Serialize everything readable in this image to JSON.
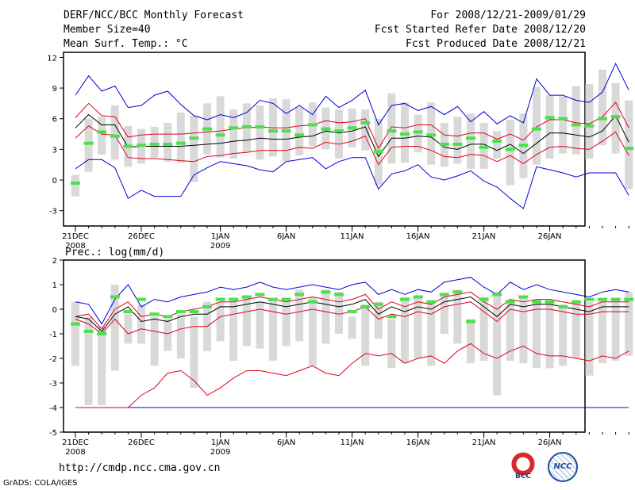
{
  "header": {
    "title": "DERF/NCC/BCC Monthly Forecast",
    "member_size": "Member Size=40",
    "variable": "Mean Surf. Temp.: °C",
    "period": "For 2008/12/21-2009/01/29",
    "start_date": "Fcst Started Refer Date 2008/12/20",
    "produced_date": "Fcst Produced Date 2008/12/21"
  },
  "footer": {
    "url": "http://cmdp.ncc.cma.gov.cn",
    "grads": "GrADS: COLA/IGES",
    "logo_left": "BCC",
    "logo_right": "NCC"
  },
  "colors": {
    "box": "#d9d9d9",
    "median": "#4ce04c",
    "mean": "#000000",
    "spread": "#e0001c",
    "extreme": "#0000d8"
  },
  "chart_data": [
    {
      "type": "line",
      "title": "Mean Surf. Temp.: °C",
      "x_start_day": 0,
      "ylim": [
        -4.5,
        12.5
      ],
      "yticks": [
        -3,
        0,
        3,
        6,
        9,
        12
      ],
      "xticks": [
        {
          "day": 0,
          "label": "21DEC",
          "sub": "2008"
        },
        {
          "day": 5,
          "label": "26DEC",
          "sub": ""
        },
        {
          "day": 11,
          "label": "1JAN",
          "sub": "2009"
        },
        {
          "day": 16,
          "label": "6JAN",
          "sub": ""
        },
        {
          "day": 21,
          "label": "11JAN",
          "sub": ""
        },
        {
          "day": 26,
          "label": "16JAN",
          "sub": ""
        },
        {
          "day": 31,
          "label": "21JAN",
          "sub": ""
        },
        {
          "day": 36,
          "label": "26JAN",
          "sub": ""
        }
      ],
      "series": [
        {
          "name": "max",
          "values": [
            8.3,
            10.2,
            8.7,
            9.2,
            7.1,
            7.3,
            8.3,
            8.7,
            7.4,
            6.3,
            5.9,
            6.4,
            6.1,
            6.6,
            7.8,
            7.5,
            6.5,
            7.3,
            6.4,
            8.2,
            7.1,
            7.8,
            8.8,
            5.4,
            7.3,
            7.5,
            6.8,
            7.2,
            6.4,
            7.2,
            5.7,
            6.7,
            5.5,
            6.3,
            5.6,
            9.9,
            8.3,
            8.3,
            7.8,
            7.6,
            8.6,
            11.4,
            8.8
          ]
        },
        {
          "name": "spread_upper",
          "values": [
            6.1,
            7.5,
            6.3,
            6.2,
            4.2,
            4.4,
            4.5,
            4.5,
            4.5,
            4.6,
            4.7,
            4.8,
            5.0,
            5.1,
            5.2,
            5.1,
            5.1,
            5.3,
            5.4,
            5.8,
            5.6,
            5.7,
            6.0,
            3.1,
            5.2,
            5.1,
            5.4,
            5.4,
            4.4,
            4.3,
            4.6,
            4.6,
            4.0,
            4.5,
            3.9,
            5.2,
            5.9,
            5.9,
            5.6,
            5.5,
            6.2,
            7.6,
            5.1
          ]
        },
        {
          "name": "mean",
          "values": [
            5.1,
            6.4,
            5.4,
            5.4,
            3.2,
            3.3,
            3.3,
            3.3,
            3.3,
            3.4,
            3.5,
            3.6,
            3.8,
            3.9,
            4.1,
            4.0,
            4.0,
            4.2,
            4.3,
            4.8,
            4.6,
            4.8,
            5.2,
            2.3,
            4.1,
            4.1,
            4.3,
            4.2,
            3.2,
            3.0,
            3.5,
            3.5,
            2.9,
            3.5,
            2.6,
            3.6,
            4.6,
            4.6,
            4.4,
            4.2,
            4.8,
            6.3,
            3.7
          ]
        },
        {
          "name": "spread_lower",
          "values": [
            4.1,
            5.3,
            4.5,
            4.4,
            2.2,
            2.1,
            2.1,
            2.0,
            1.9,
            1.8,
            2.3,
            2.4,
            2.6,
            2.7,
            2.9,
            2.9,
            2.9,
            3.2,
            3.1,
            3.7,
            3.5,
            3.8,
            4.3,
            1.5,
            3.2,
            3.3,
            3.3,
            2.9,
            2.3,
            2.2,
            2.5,
            2.4,
            1.8,
            2.4,
            1.6,
            2.5,
            3.2,
            3.3,
            3.1,
            3.0,
            3.8,
            4.7,
            2.4
          ]
        },
        {
          "name": "min",
          "values": [
            1.1,
            2.0,
            2.0,
            1.2,
            -1.8,
            -1.0,
            -1.6,
            -1.6,
            -1.6,
            0.5,
            1.2,
            1.8,
            1.6,
            1.4,
            1.0,
            0.8,
            1.8,
            2.0,
            2.2,
            1.1,
            1.8,
            2.2,
            2.2,
            -0.9,
            0.6,
            0.9,
            1.5,
            0.3,
            0.0,
            0.4,
            0.9,
            -0.1,
            -0.7,
            -1.8,
            -2.8,
            1.3,
            1.0,
            0.7,
            0.3,
            0.7,
            0.7,
            0.7,
            -1.5
          ]
        },
        {
          "name": "median",
          "values": [
            -0.3,
            3.6,
            4.7,
            4.3,
            3.3,
            3.4,
            3.5,
            3.5,
            3.6,
            4.1,
            5.0,
            4.4,
            5.1,
            5.2,
            5.2,
            4.8,
            4.8,
            4.4,
            5.4,
            5.0,
            4.8,
            5.1,
            5.6,
            2.8,
            4.8,
            4.5,
            4.7,
            4.4,
            3.5,
            3.5,
            4.1,
            3.2,
            3.8,
            3.0,
            3.4,
            5.0,
            6.1,
            6.0,
            5.4,
            5.3,
            6.0,
            6.2,
            3.1
          ]
        },
        {
          "name": "box_upper",
          "values": [
            0.5,
            6.0,
            6.2,
            7.3,
            5.3,
            5.0,
            5.2,
            5.6,
            6.6,
            6.3,
            7.5,
            8.2,
            6.9,
            7.5,
            7.3,
            8.0,
            7.9,
            7.1,
            7.6,
            7.1,
            6.9,
            7.0,
            6.9,
            6.0,
            8.5,
            7.6,
            6.4,
            7.6,
            5.6,
            6.2,
            6.5,
            5.6,
            4.8,
            5.9,
            6.5,
            9.1,
            8.3,
            8.2,
            9.2,
            9.4,
            10.8,
            9.5,
            7.8
          ]
        },
        {
          "name": "box_lower",
          "values": [
            -1.6,
            0.8,
            2.5,
            2.0,
            1.3,
            1.6,
            2.2,
            1.8,
            1.7,
            -0.2,
            2.5,
            2.2,
            2.1,
            2.7,
            2.0,
            2.3,
            1.8,
            2.4,
            3.3,
            3.0,
            2.1,
            3.2,
            2.9,
            -0.5,
            1.6,
            1.7,
            2.7,
            1.5,
            1.3,
            1.6,
            1.1,
            1.1,
            2.1,
            -0.5,
            0.2,
            1.5,
            2.1,
            2.6,
            2.5,
            2.1,
            3.4,
            2.6,
            -0.9
          ]
        }
      ]
    },
    {
      "type": "line",
      "title": "Prec.: log(mm/d)",
      "x_start_day": 0,
      "ylim": [
        -5,
        2
      ],
      "yticks": [
        -5,
        -4,
        -3,
        -2,
        -1,
        0,
        1,
        2
      ],
      "xticks": [
        {
          "day": 0,
          "label": "21DEC",
          "sub": "2008"
        },
        {
          "day": 5,
          "label": "26DEC",
          "sub": ""
        },
        {
          "day": 11,
          "label": "1JAN",
          "sub": "2009"
        },
        {
          "day": 16,
          "label": "6JAN",
          "sub": ""
        },
        {
          "day": 21,
          "label": "11JAN",
          "sub": ""
        },
        {
          "day": 26,
          "label": "16JAN",
          "sub": ""
        },
        {
          "day": 31,
          "label": "21JAN",
          "sub": ""
        },
        {
          "day": 36,
          "label": "26JAN",
          "sub": ""
        }
      ],
      "series": [
        {
          "name": "max",
          "values": [
            0.3,
            0.2,
            -0.6,
            0.4,
            1.0,
            0.1,
            0.4,
            0.3,
            0.5,
            0.6,
            0.7,
            0.9,
            0.8,
            0.9,
            1.1,
            0.9,
            0.8,
            0.9,
            1.0,
            0.9,
            0.8,
            1.0,
            1.1,
            0.6,
            0.8,
            0.6,
            0.8,
            0.7,
            1.1,
            1.2,
            1.3,
            0.9,
            0.6,
            1.1,
            0.8,
            1.0,
            0.8,
            0.7,
            0.6,
            0.5,
            0.7,
            0.8,
            0.7
          ]
        },
        {
          "name": "spread_upper",
          "values": [
            -0.3,
            -0.2,
            -0.8,
            0.0,
            0.3,
            -0.3,
            -0.2,
            -0.3,
            -0.1,
            0.0,
            0.1,
            0.3,
            0.3,
            0.4,
            0.5,
            0.4,
            0.3,
            0.4,
            0.5,
            0.4,
            0.3,
            0.4,
            0.6,
            0.0,
            0.3,
            0.1,
            0.3,
            0.2,
            0.5,
            0.6,
            0.7,
            0.3,
            0.0,
            0.4,
            0.3,
            0.4,
            0.4,
            0.3,
            0.2,
            0.1,
            0.3,
            0.3,
            0.3
          ]
        },
        {
          "name": "mean",
          "values": [
            -0.3,
            -0.4,
            -0.9,
            -0.2,
            0.1,
            -0.5,
            -0.4,
            -0.5,
            -0.3,
            -0.2,
            -0.2,
            0.1,
            0.1,
            0.2,
            0.3,
            0.2,
            0.1,
            0.2,
            0.3,
            0.2,
            0.1,
            0.2,
            0.4,
            -0.2,
            0.1,
            -0.1,
            0.1,
            0.0,
            0.3,
            0.4,
            0.5,
            0.1,
            -0.3,
            0.2,
            0.1,
            0.2,
            0.2,
            0.1,
            0.0,
            -0.1,
            0.1,
            0.1,
            0.1
          ]
        },
        {
          "name": "spread_lower",
          "values": [
            -0.4,
            -0.6,
            -1.0,
            -0.4,
            -1.0,
            -0.8,
            -0.9,
            -1.0,
            -0.8,
            -0.7,
            -0.7,
            -0.3,
            -0.2,
            -0.1,
            0.0,
            -0.1,
            -0.2,
            -0.1,
            0.0,
            -0.1,
            -0.2,
            -0.1,
            0.1,
            -0.4,
            -0.2,
            -0.3,
            -0.1,
            -0.2,
            0.1,
            0.2,
            0.3,
            -0.1,
            -0.5,
            0.0,
            -0.1,
            0.0,
            0.0,
            -0.1,
            -0.2,
            -0.2,
            -0.1,
            -0.1,
            -0.1
          ]
        },
        {
          "name": "min",
          "values": [
            -4.0,
            -4.0,
            -4.0,
            -4.0,
            -4.0,
            -4.0,
            -4.0,
            -4.0,
            -4.0,
            -4.0,
            -4.0,
            -4.0,
            -4.0,
            -4.0,
            -4.0,
            -4.0,
            -4.0,
            -4.0,
            -4.0,
            -4.0,
            -4.0,
            -4.0,
            -4.0,
            -4.0,
            -4.0,
            -4.0,
            -4.0,
            -4.0,
            -4.0,
            -4.0,
            -4.0,
            -4.0,
            -4.0,
            -4.0,
            -4.0,
            -4.0,
            -4.0,
            -4.0,
            -4.0,
            -4.0,
            -4.0,
            -4.0,
            -4.0
          ]
        },
        {
          "name": "lower_percentile",
          "values": [
            -4.0,
            -4.0,
            -4.0,
            -4.0,
            -4.0,
            -3.5,
            -3.2,
            -2.6,
            -2.5,
            -2.9,
            -3.5,
            -3.2,
            -2.8,
            -2.5,
            -2.5,
            -2.6,
            -2.7,
            -2.5,
            -2.3,
            -2.6,
            -2.7,
            -2.2,
            -1.8,
            -1.9,
            -1.8,
            -2.2,
            -2.0,
            -1.9,
            -2.2,
            -1.7,
            -1.4,
            -1.8,
            -2.0,
            -1.7,
            -1.5,
            -1.8,
            -1.9,
            -1.9,
            -2.0,
            -2.1,
            -1.9,
            -2.0,
            -1.7
          ]
        },
        {
          "name": "median",
          "values": [
            -0.6,
            -0.9,
            -1.0,
            0.5,
            -0.1,
            0.4,
            -0.2,
            -0.3,
            -0.1,
            -0.1,
            0.1,
            0.4,
            0.4,
            0.5,
            0.6,
            0.4,
            0.4,
            0.6,
            0.3,
            0.7,
            0.6,
            -0.1,
            0.1,
            0.2,
            -0.3,
            0.4,
            0.5,
            0.3,
            0.6,
            0.7,
            -0.5,
            0.4,
            0.6,
            0.3,
            0.5,
            0.3,
            0.3,
            0.1,
            0.3,
            0.4,
            0.4,
            0.4,
            0.4
          ]
        },
        {
          "name": "box_upper",
          "values": [
            0.3,
            -0.3,
            -0.7,
            1.0,
            -0.2,
            0.2,
            -0.3,
            -0.4,
            -0.2,
            -0.3,
            0.3,
            0.3,
            0.3,
            0.5,
            0.3,
            0.4,
            0.3,
            0.8,
            0.5,
            0.8,
            0.7,
            -0.3,
            0.2,
            0.3,
            -0.4,
            0.5,
            0.5,
            0.3,
            0.6,
            0.8,
            -0.4,
            0.5,
            0.7,
            0.4,
            0.5,
            0.4,
            0.3,
            0.2,
            0.3,
            0.3,
            0.4,
            0.4,
            0.7
          ]
        },
        {
          "name": "box_lower",
          "values": [
            -2.3,
            -3.9,
            -3.9,
            -2.5,
            -1.4,
            -1.4,
            -2.3,
            -1.7,
            -2.0,
            -3.2,
            -1.7,
            -1.3,
            -2.1,
            -1.5,
            -1.6,
            -2.1,
            -1.5,
            -1.3,
            -2.3,
            -1.4,
            -1.0,
            -1.2,
            -2.3,
            -1.2,
            -2.4,
            -2.2,
            -2.0,
            -2.3,
            -1.0,
            -1.4,
            -2.2,
            -2.1,
            -3.5,
            -2.1,
            -2.2,
            -2.4,
            -2.4,
            -2.3,
            -2.0,
            -2.7,
            -2.2,
            -2.1,
            -1.9
          ]
        }
      ]
    }
  ]
}
